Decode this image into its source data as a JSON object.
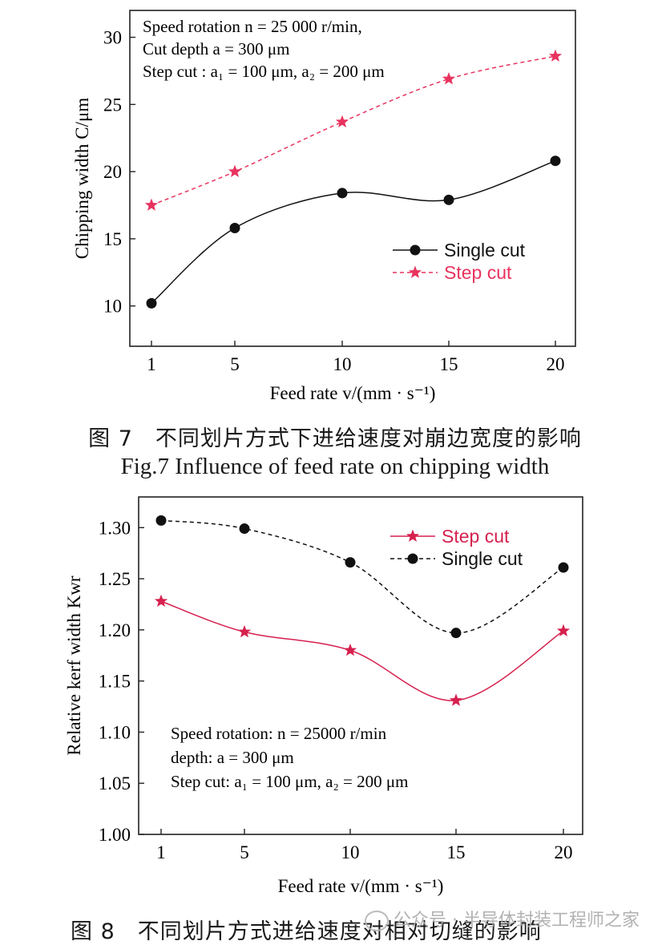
{
  "chart_data": [
    {
      "type": "line",
      "id": "fig7",
      "x": [
        1,
        5,
        10,
        15,
        20
      ],
      "xticks": [
        "1",
        "5",
        "10",
        "15",
        "20"
      ],
      "xlabel": "Feed rate v/(mm · s⁻¹)",
      "ylabel": "Chipping width C/μm",
      "ylim": [
        7,
        32
      ],
      "yticks": [
        "10",
        "15",
        "20",
        "25",
        "30"
      ],
      "ytick_values": [
        10,
        15,
        20,
        25,
        30
      ],
      "series": [
        {
          "name": "Single cut",
          "values": [
            10.2,
            15.8,
            18.4,
            17.9,
            20.8
          ],
          "marker": "circle",
          "style": "solid",
          "color": "#111111"
        },
        {
          "name": "Step cut",
          "values": [
            17.5,
            20.0,
            23.7,
            26.9,
            28.6
          ],
          "marker": "star",
          "style": "dashed",
          "color": "#e8335f"
        }
      ],
      "annotations": [
        "Speed rotation n = 25 000 r/min,",
        "Cut depth a = 300 μm",
        "Step cut : a₁ = 100 μm, a₂ = 200 μm"
      ],
      "legend": "lower-right"
    },
    {
      "type": "line",
      "id": "fig8",
      "x": [
        1,
        5,
        10,
        15,
        20
      ],
      "xticks": [
        "1",
        "5",
        "10",
        "15",
        "20"
      ],
      "xlabel": "Feed rate v/(mm · s⁻¹)",
      "ylabel": "Relative kerf width Kwr",
      "ylim": [
        1.0,
        1.33
      ],
      "yticks": [
        "1.00",
        "1.05",
        "1.10",
        "1.15",
        "1.20",
        "1.25",
        "1.30"
      ],
      "ytick_values": [
        1.0,
        1.05,
        1.1,
        1.15,
        1.2,
        1.25,
        1.3
      ],
      "series": [
        {
          "name": "Step cut",
          "values": [
            1.228,
            1.198,
            1.18,
            1.131,
            1.199
          ],
          "marker": "star",
          "style": "solid",
          "color": "#d6204e"
        },
        {
          "name": "Single cut",
          "values": [
            1.307,
            1.299,
            1.266,
            1.197,
            1.261
          ],
          "marker": "circle",
          "style": "dashed",
          "color": "#111111"
        }
      ],
      "annotations": [
        "Speed rotation: n = 25000 r/min",
        "depth: a = 300 μm",
        "Step cut: a₁ = 100 μm, a₂ = 200 μm"
      ],
      "legend": "top-right"
    }
  ],
  "captions": {
    "fig7_cn": "图 7　不同划片方式下进给速度对崩边宽度的影响",
    "fig7_en": "Fig.7 Influence of feed rate on chipping width",
    "fig8_cn": "图 8　不同划片方式进给速度对相对切缝的影响"
  },
  "watermark": "公众号 · 半导体封装工程师之家"
}
